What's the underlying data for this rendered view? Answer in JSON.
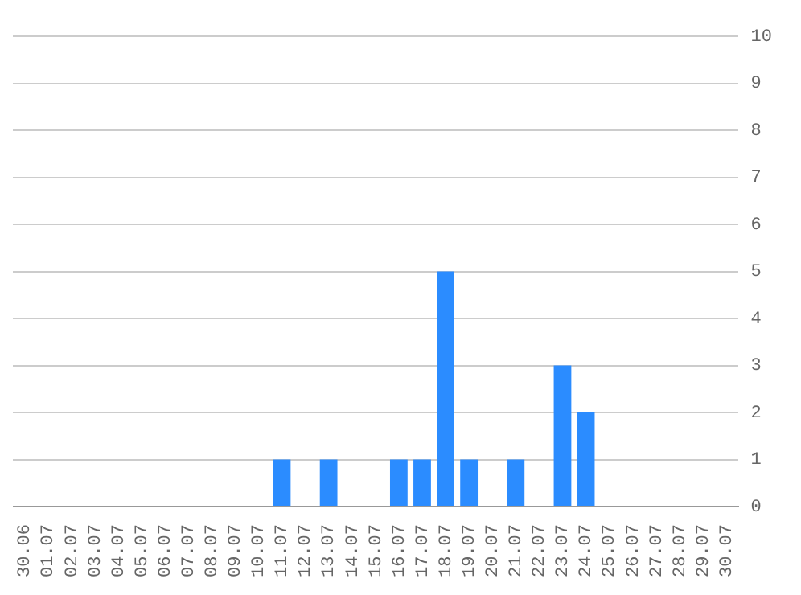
{
  "chart_data": {
    "type": "bar",
    "categories": [
      "30.06",
      "01.07",
      "02.07",
      "03.07",
      "04.07",
      "05.07",
      "06.07",
      "07.07",
      "08.07",
      "09.07",
      "10.07",
      "11.07",
      "12.07",
      "13.07",
      "14.07",
      "15.07",
      "16.07",
      "17.07",
      "18.07",
      "19.07",
      "20.07",
      "21.07",
      "22.07",
      "23.07",
      "24.07",
      "25.07",
      "26.07",
      "27.07",
      "28.07",
      "29.07",
      "30.07"
    ],
    "values": [
      0,
      0,
      0,
      0,
      0,
      0,
      0,
      0,
      0,
      0,
      0,
      1,
      0,
      1,
      0,
      0,
      1,
      1,
      5,
      1,
      0,
      1,
      0,
      3,
      2,
      0,
      0,
      0,
      0,
      0,
      0
    ],
    "color": "#2b8cff",
    "ylim": [
      0,
      10
    ],
    "yticks": [
      0,
      1,
      2,
      3,
      4,
      5,
      6,
      7,
      8,
      9,
      10
    ],
    "grid": "y",
    "legend": false
  }
}
